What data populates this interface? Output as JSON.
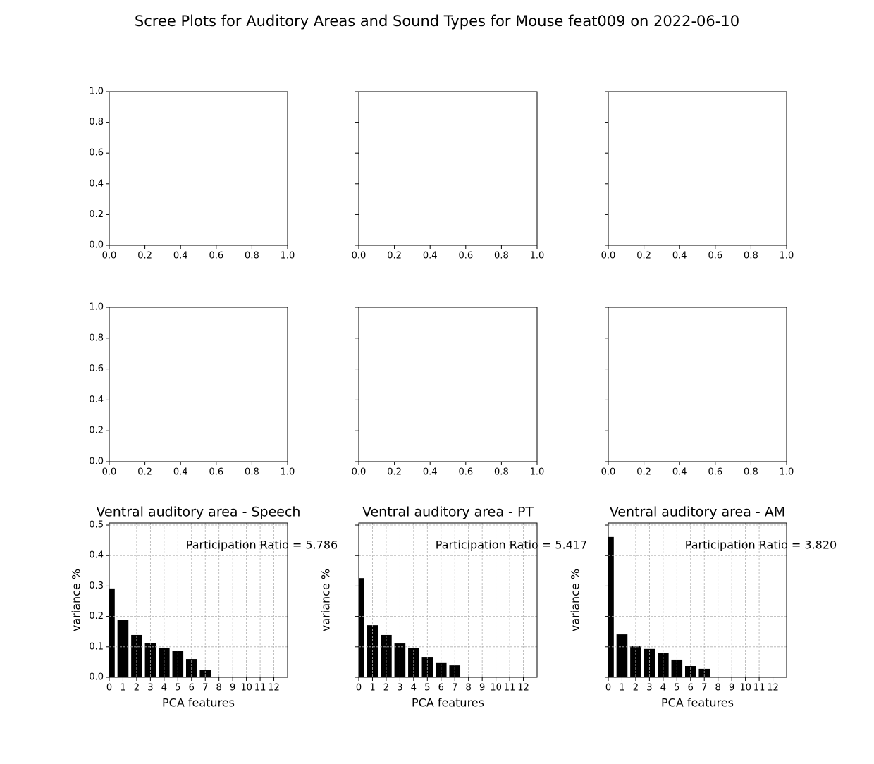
{
  "title": "Scree Plots for Auditory Areas and Sound Types for Mouse feat009 on 2022-06-10",
  "chart_data": [
    {
      "type": "empty",
      "xlim": [
        0,
        1
      ],
      "ylim": [
        0,
        1
      ],
      "xticks": [
        {
          "value": 0,
          "label": "0.0"
        },
        {
          "value": 0.2,
          "label": "0.2"
        },
        {
          "value": 0.4,
          "label": "0.4"
        },
        {
          "value": 0.6,
          "label": "0.6"
        },
        {
          "value": 0.8,
          "label": "0.8"
        },
        {
          "value": 1,
          "label": "1.0"
        }
      ],
      "yticks": [
        {
          "value": 0,
          "label": "0.0"
        },
        {
          "value": 0.2,
          "label": "0.2"
        },
        {
          "value": 0.4,
          "label": "0.4"
        },
        {
          "value": 0.6,
          "label": "0.6"
        },
        {
          "value": 0.8,
          "label": "0.8"
        },
        {
          "value": 1,
          "label": "1.0"
        }
      ]
    },
    {
      "type": "empty",
      "xlim": [
        0,
        1
      ],
      "ylim": [
        0,
        1
      ],
      "xticks": [
        {
          "value": 0,
          "label": "0.0"
        },
        {
          "value": 0.2,
          "label": "0.2"
        },
        {
          "value": 0.4,
          "label": "0.4"
        },
        {
          "value": 0.6,
          "label": "0.6"
        },
        {
          "value": 0.8,
          "label": "0.8"
        },
        {
          "value": 1,
          "label": "1.0"
        }
      ],
      "yticks": [
        0,
        0.2,
        0.4,
        0.6,
        0.8,
        1
      ],
      "ytick_labels": false
    },
    {
      "type": "empty",
      "xlim": [
        0,
        1
      ],
      "ylim": [
        0,
        1
      ],
      "xticks": [
        {
          "value": 0,
          "label": "0.0"
        },
        {
          "value": 0.2,
          "label": "0.2"
        },
        {
          "value": 0.4,
          "label": "0.4"
        },
        {
          "value": 0.6,
          "label": "0.6"
        },
        {
          "value": 0.8,
          "label": "0.8"
        },
        {
          "value": 1,
          "label": "1.0"
        }
      ],
      "yticks": [
        0,
        0.2,
        0.4,
        0.6,
        0.8,
        1
      ],
      "ytick_labels": false
    },
    {
      "type": "empty",
      "xlim": [
        0,
        1
      ],
      "ylim": [
        0,
        1
      ],
      "xticks": [
        {
          "value": 0,
          "label": "0.0"
        },
        {
          "value": 0.2,
          "label": "0.2"
        },
        {
          "value": 0.4,
          "label": "0.4"
        },
        {
          "value": 0.6,
          "label": "0.6"
        },
        {
          "value": 0.8,
          "label": "0.8"
        },
        {
          "value": 1,
          "label": "1.0"
        }
      ],
      "yticks": [
        {
          "value": 0,
          "label": "0.0"
        },
        {
          "value": 0.2,
          "label": "0.2"
        },
        {
          "value": 0.4,
          "label": "0.4"
        },
        {
          "value": 0.6,
          "label": "0.6"
        },
        {
          "value": 0.8,
          "label": "0.8"
        },
        {
          "value": 1,
          "label": "1.0"
        }
      ]
    },
    {
      "type": "empty",
      "xlim": [
        0,
        1
      ],
      "ylim": [
        0,
        1
      ],
      "xticks": [
        {
          "value": 0,
          "label": "0.0"
        },
        {
          "value": 0.2,
          "label": "0.2"
        },
        {
          "value": 0.4,
          "label": "0.4"
        },
        {
          "value": 0.6,
          "label": "0.6"
        },
        {
          "value": 0.8,
          "label": "0.8"
        },
        {
          "value": 1,
          "label": "1.0"
        }
      ],
      "yticks": [
        0,
        0.2,
        0.4,
        0.6,
        0.8,
        1
      ],
      "ytick_labels": false
    },
    {
      "type": "empty",
      "xlim": [
        0,
        1
      ],
      "ylim": [
        0,
        1
      ],
      "xticks": [
        {
          "value": 0,
          "label": "0.0"
        },
        {
          "value": 0.2,
          "label": "0.2"
        },
        {
          "value": 0.4,
          "label": "0.4"
        },
        {
          "value": 0.6,
          "label": "0.6"
        },
        {
          "value": 0.8,
          "label": "0.8"
        },
        {
          "value": 1,
          "label": "1.0"
        }
      ],
      "yticks": [
        0,
        0.2,
        0.4,
        0.6,
        0.8,
        1
      ],
      "ytick_labels": false
    },
    {
      "type": "bar",
      "title": "Ventral auditory area - Speech",
      "xlabel": "PCA features",
      "ylabel": "variance %",
      "annotation": "Participation Ratio = 5.786",
      "color": "#000000",
      "grid": true,
      "x": [
        0,
        1,
        2,
        3,
        4,
        5,
        6,
        7,
        8,
        9,
        10,
        11,
        12
      ],
      "values": [
        0.292,
        0.188,
        0.139,
        0.113,
        0.095,
        0.086,
        0.06,
        0.025,
        0,
        0,
        0,
        0,
        0
      ],
      "xlim": [
        0,
        13
      ],
      "ylim": [
        0,
        0.507
      ],
      "xticks": [
        0,
        1,
        2,
        3,
        4,
        5,
        6,
        7,
        8,
        9,
        10,
        11,
        12
      ],
      "yticks": [
        {
          "value": 0,
          "label": "0.0"
        },
        0.1,
        0.2,
        0.3,
        0.4,
        0.5
      ]
    },
    {
      "type": "bar",
      "title": "Ventral auditory area - PT",
      "xlabel": "PCA features",
      "ylabel": "variance %",
      "annotation": "Participation Ratio = 5.417",
      "color": "#000000",
      "grid": true,
      "x": [
        0,
        1,
        2,
        3,
        4,
        5,
        6,
        7,
        8,
        9,
        10,
        11,
        12
      ],
      "values": [
        0.326,
        0.171,
        0.139,
        0.111,
        0.097,
        0.067,
        0.049,
        0.039,
        0,
        0,
        0,
        0,
        0
      ],
      "xlim": [
        0,
        13
      ],
      "ylim": [
        0,
        0.507
      ],
      "xticks": [
        0,
        1,
        2,
        3,
        4,
        5,
        6,
        7,
        8,
        9,
        10,
        11,
        12
      ],
      "yticks": [
        0,
        0.1,
        0.2,
        0.3,
        0.4,
        0.5
      ],
      "ytick_labels": false
    },
    {
      "type": "bar",
      "title": "Ventral auditory area - AM",
      "xlabel": "PCA features",
      "ylabel": "variance %",
      "annotation": "Participation Ratio = 3.820",
      "color": "#000000",
      "grid": true,
      "x": [
        0,
        1,
        2,
        3,
        4,
        5,
        6,
        7,
        8,
        9,
        10,
        11,
        12
      ],
      "values": [
        0.461,
        0.141,
        0.102,
        0.093,
        0.079,
        0.058,
        0.037,
        0.028,
        0,
        0,
        0,
        0,
        0
      ],
      "xlim": [
        0,
        13
      ],
      "ylim": [
        0,
        0.507
      ],
      "xticks": [
        0,
        1,
        2,
        3,
        4,
        5,
        6,
        7,
        8,
        9,
        10,
        11,
        12
      ],
      "yticks": [
        0,
        0.1,
        0.2,
        0.3,
        0.4,
        0.5
      ],
      "ytick_labels": false
    }
  ]
}
